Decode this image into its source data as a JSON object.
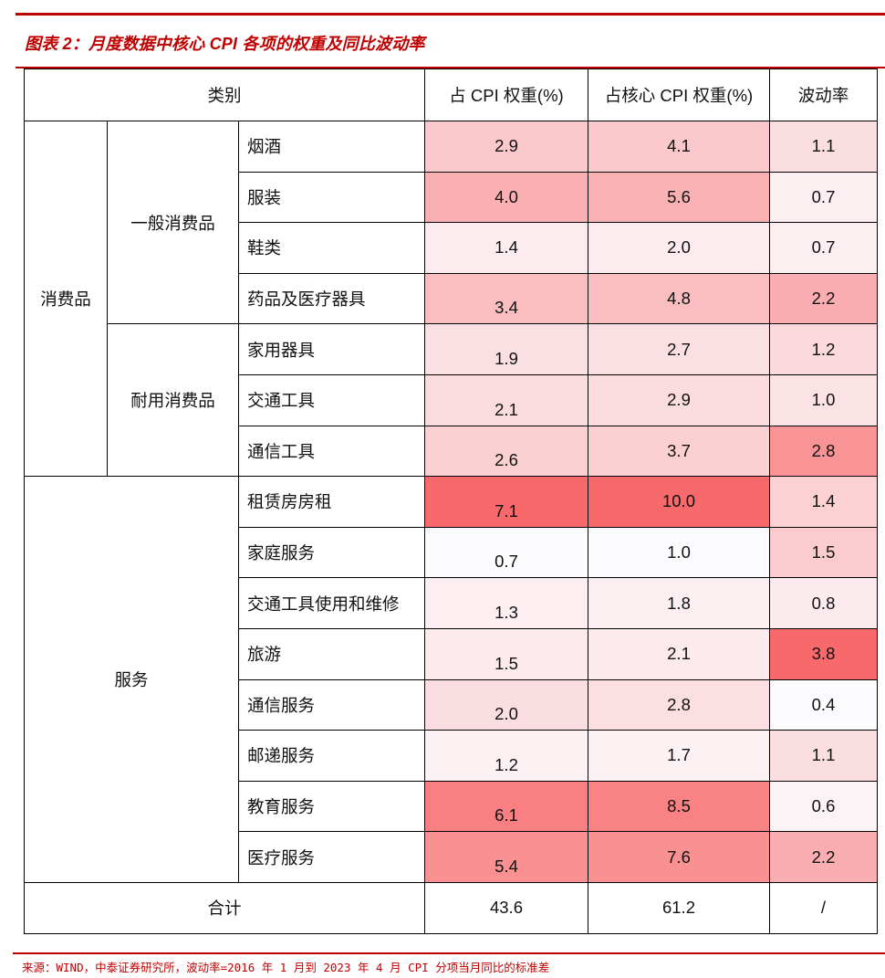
{
  "title": "图表 2：月度数据中核心 CPI 各项的权重及同比波动率",
  "source": "来源：WIND，中泰证券研究所，波动率=2016 年 1 月到 2023 年 4 月 CPI 分项当月同比的标准差",
  "header": {
    "category": "类别",
    "cpi_weight": "占 CPI 权重(%)",
    "core_cpi_weight": "占核心 CPI 权重(%)",
    "volatility": "波动率"
  },
  "groups": {
    "consumer_goods": "消费品",
    "general_goods": "一般消费品",
    "durable_goods": "耐用消费品",
    "services": "服务"
  },
  "rows": [
    {
      "item": "烟酒",
      "cpi": "2.9",
      "core": "4.1",
      "vol": "1.1",
      "cpi_color": "#FBC9CC",
      "core_color": "#FBC9CC",
      "vol_color": "#FBDEE0"
    },
    {
      "item": "服装",
      "cpi": "4.0",
      "core": "5.6",
      "vol": "0.7",
      "cpi_color": "#FAB0B3",
      "core_color": "#FAB1B4",
      "vol_color": "#FCEFF2"
    },
    {
      "item": "鞋类",
      "cpi": "1.4",
      "core": "2.0",
      "vol": "0.7",
      "cpi_color": "#FCECEF",
      "core_color": "#FCECEF",
      "vol_color": "#FCEFF2"
    },
    {
      "item": "药品及医疗器具",
      "cpi": "3.4",
      "core": "4.8",
      "vol": "2.2",
      "cpi_color": "#FABEC1",
      "core_color": "#FABEC1",
      "vol_color": "#FAAEB1"
    },
    {
      "item": "家用器具",
      "cpi": "1.9",
      "core": "2.7",
      "vol": "1.2",
      "cpi_color": "#FBE0E3",
      "core_color": "#FBE0E3",
      "vol_color": "#FBD9DC"
    },
    {
      "item": "交通工具",
      "cpi": "2.1",
      "core": "2.9",
      "vol": "1.0",
      "cpi_color": "#FBDCDE",
      "core_color": "#FBDDE0",
      "vol_color": "#FBE2E5"
    },
    {
      "item": "通信工具",
      "cpi": "2.6",
      "core": "3.7",
      "vol": "2.8",
      "cpi_color": "#FBD0D3",
      "core_color": "#FBD0D3",
      "vol_color": "#F99496"
    },
    {
      "item": "租赁房房租",
      "cpi": "7.1",
      "core": "10.0",
      "vol": "1.4",
      "cpi_color": "#F8696B",
      "core_color": "#F8696B",
      "vol_color": "#FBD1D3"
    },
    {
      "item": "家庭服务",
      "cpi": "0.7",
      "core": "1.0",
      "vol": "1.5",
      "cpi_color": "#FCFCFF",
      "core_color": "#FCFCFF",
      "vol_color": "#FBCCCF"
    },
    {
      "item": "交通工具使用和维修",
      "cpi": "1.3",
      "core": "1.8",
      "vol": "0.8",
      "cpi_color": "#FCEEF1",
      "core_color": "#FCEFF2",
      "vol_color": "#FCEBEE"
    },
    {
      "item": "旅游",
      "cpi": "1.5",
      "core": "2.1",
      "vol": "3.8",
      "cpi_color": "#FCEAEC",
      "core_color": "#FCEAED",
      "vol_color": "#F8696B"
    },
    {
      "item": "通信服务",
      "cpi": "2.0",
      "core": "2.8",
      "vol": "0.4",
      "cpi_color": "#FBDEE1",
      "core_color": "#FBDFE1",
      "vol_color": "#FCFCFF"
    },
    {
      "item": "邮递服务",
      "cpi": "1.2",
      "core": "1.7",
      "vol": "1.1",
      "cpi_color": "#FCF1F3",
      "core_color": "#FCF1F3",
      "vol_color": "#FBDEE0"
    },
    {
      "item": "教育服务",
      "cpi": "6.1",
      "core": "8.5",
      "vol": "0.6",
      "cpi_color": "#F98082",
      "core_color": "#F98284",
      "vol_color": "#FCF3F6"
    },
    {
      "item": "医疗服务",
      "cpi": "5.4",
      "core": "7.6",
      "vol": "2.2",
      "cpi_color": "#F99092",
      "core_color": "#F99092",
      "vol_color": "#FAAEB1"
    }
  ],
  "total": {
    "label": "合计",
    "cpi": "43.6",
    "core": "61.2",
    "vol": "/"
  },
  "colors": {
    "accent": "#C00000",
    "scale_min": "#FCFCFF",
    "scale_max": "#F8696B"
  }
}
